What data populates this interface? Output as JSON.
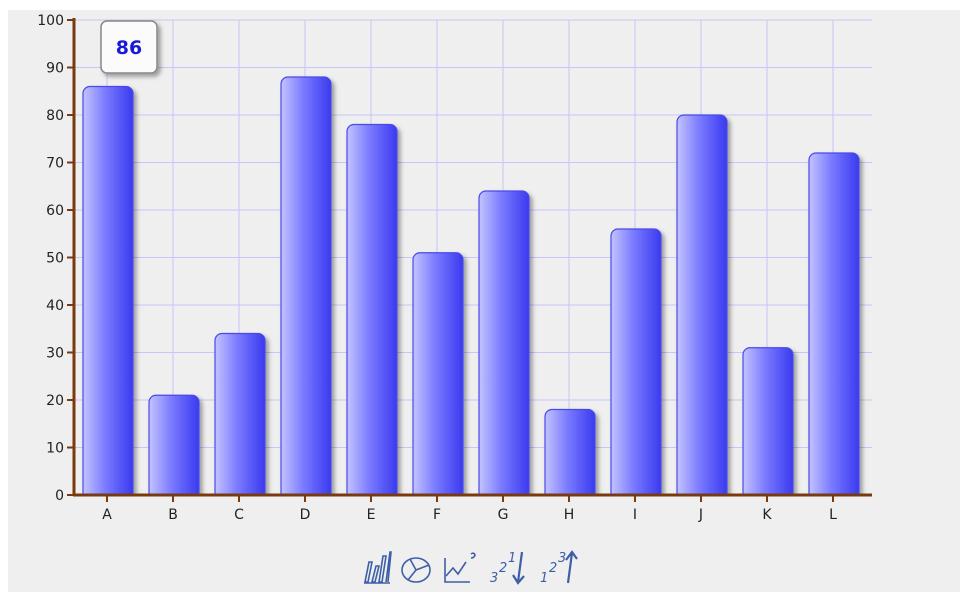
{
  "chart_data": {
    "type": "bar",
    "categories": [
      "A",
      "B",
      "C",
      "D",
      "E",
      "F",
      "G",
      "H",
      "I",
      "J",
      "K",
      "L"
    ],
    "values": [
      86,
      21,
      34,
      88,
      78,
      51,
      64,
      18,
      56,
      80,
      31,
      72
    ],
    "title": "",
    "xlabel": "",
    "ylabel": "",
    "ylim": [
      0,
      100
    ],
    "yticks": [
      "0",
      "10",
      "20",
      "30",
      "40",
      "50",
      "60",
      "70",
      "80",
      "90",
      "100"
    ],
    "grid": true,
    "tooltip": {
      "category": "A",
      "value": "86"
    }
  },
  "colors": {
    "bar_light": "#c3c3ff",
    "bar_mid": "#7a7aff",
    "bar_dark": "#3a3af0",
    "bar_edge": "#4a4ae8",
    "axis": "#7a3a10",
    "grid": "#c6c6f8",
    "tooltip_text": "#1a1ad6",
    "toolbar_icon": "#3e5fa8"
  },
  "toolbar": {
    "icons": [
      "bar-chart-icon",
      "pie-chart-icon",
      "line-chart-icon",
      "sort-descending-icon",
      "sort-ascending-icon"
    ]
  }
}
